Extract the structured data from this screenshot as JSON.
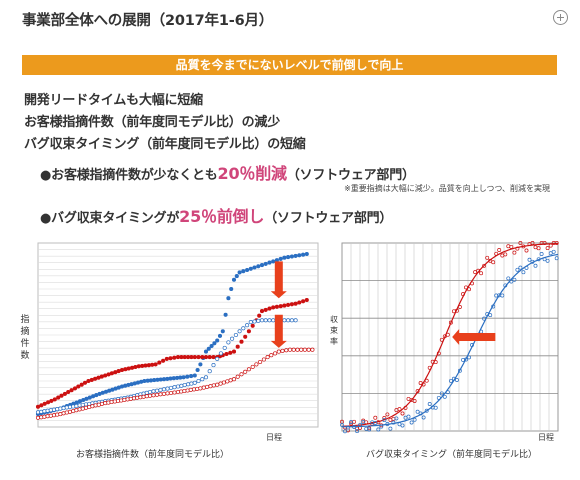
{
  "title": "事業部全体への展開（2017年1-6月）",
  "zoom_icon": "plus-circle-icon",
  "banner": "品質を今までにないレベルで前倒しで向上",
  "lines": [
    "開発リードタイムも大幅に短縮",
    "お客様指摘件数（前年度同モデル比）の減少",
    "バグ収束タイミング（前年度同モデル比）の短縮"
  ],
  "bullet1": {
    "pre": "●お客様指摘件数が少なくとも",
    "accent": "20％削減",
    "post": "（ソフトウェア部門）"
  },
  "note": "※重要指摘は大幅に減少。品質を向上しつつ、削減を実現",
  "bullet2": {
    "pre": "●バグ収束タイミングが",
    "accent": "25％前倒し",
    "post": "（ソフトウェア部門）"
  },
  "colors": {
    "banner": "#ec9a1d",
    "accent": "#d0457a",
    "red": "#cc1111",
    "blue": "#2b6fc2",
    "arrow": "#e8401c"
  },
  "chart_data": [
    {
      "type": "scatter",
      "ylabel": "指摘件数",
      "xlabel": "日程",
      "caption": "お客様指摘件数（前年度同モデル比）",
      "xlim": [
        0,
        100
      ],
      "ylim": [
        0,
        100
      ],
      "grid": true,
      "series": [
        {
          "color": "#2b6fc2",
          "filled": true,
          "points": [
            [
              0,
              7
            ],
            [
              8,
              10
            ],
            [
              15,
              14
            ],
            [
              22,
              18
            ],
            [
              30,
              22
            ],
            [
              38,
              25
            ],
            [
              45,
              26
            ],
            [
              52,
              27
            ],
            [
              56,
              28
            ],
            [
              58,
              34
            ],
            [
              60,
              41
            ],
            [
              62,
              44
            ],
            [
              64,
              47
            ],
            [
              66,
              52
            ],
            [
              68,
              70
            ],
            [
              70,
              80
            ],
            [
              72,
              84
            ],
            [
              76,
              86
            ],
            [
              80,
              88
            ],
            [
              84,
              90
            ],
            [
              88,
              92
            ],
            [
              92,
              93
            ],
            [
              96,
              94
            ]
          ]
        },
        {
          "color": "#cc1111",
          "filled": true,
          "points": [
            [
              0,
              11
            ],
            [
              6,
              15
            ],
            [
              12,
              20
            ],
            [
              18,
              25
            ],
            [
              24,
              28
            ],
            [
              30,
              31
            ],
            [
              36,
              33
            ],
            [
              42,
              34
            ],
            [
              46,
              37
            ],
            [
              50,
              38
            ],
            [
              56,
              38
            ],
            [
              60,
              38
            ],
            [
              64,
              38
            ],
            [
              66,
              39
            ],
            [
              70,
              41
            ],
            [
              74,
              49
            ],
            [
              78,
              58
            ],
            [
              80,
              63
            ],
            [
              84,
              65
            ],
            [
              88,
              66
            ],
            [
              92,
              67
            ],
            [
              96,
              69
            ]
          ]
        },
        {
          "color": "#2b6fc2",
          "filled": false,
          "points": [
            [
              0,
              8
            ],
            [
              8,
              10
            ],
            [
              16,
              12
            ],
            [
              24,
              14
            ],
            [
              32,
              16
            ],
            [
              40,
              19
            ],
            [
              50,
              22
            ],
            [
              56,
              24
            ],
            [
              60,
              27
            ],
            [
              64,
              37
            ],
            [
              68,
              46
            ],
            [
              72,
              52
            ],
            [
              76,
              57
            ],
            [
              80,
              58
            ],
            [
              84,
              58
            ],
            [
              88,
              58
            ],
            [
              92,
              58
            ]
          ]
        },
        {
          "color": "#cc1111",
          "filled": false,
          "points": [
            [
              0,
              5
            ],
            [
              8,
              7
            ],
            [
              16,
              10
            ],
            [
              24,
              13
            ],
            [
              32,
              15
            ],
            [
              40,
              17
            ],
            [
              50,
              19
            ],
            [
              58,
              21
            ],
            [
              64,
              23
            ],
            [
              70,
              26
            ],
            [
              74,
              30
            ],
            [
              78,
              34
            ],
            [
              82,
              38
            ],
            [
              86,
              41
            ],
            [
              90,
              42
            ],
            [
              94,
              42
            ],
            [
              98,
              42
            ]
          ]
        }
      ]
    },
    {
      "type": "line",
      "ylabel": "収束率",
      "xlabel": "日程",
      "caption": "バグ収束タイミング（前年度同モデル比）",
      "xlim": [
        0,
        100
      ],
      "ylim": [
        0,
        100
      ],
      "grid": true,
      "series": [
        {
          "color": "#cc1111",
          "shape": "sigmoid",
          "midpoint": 48,
          "steepness": 9,
          "top": 100
        },
        {
          "color": "#2b6fc2",
          "shape": "sigmoid",
          "midpoint": 62,
          "steepness": 10,
          "top": 96
        }
      ]
    }
  ]
}
